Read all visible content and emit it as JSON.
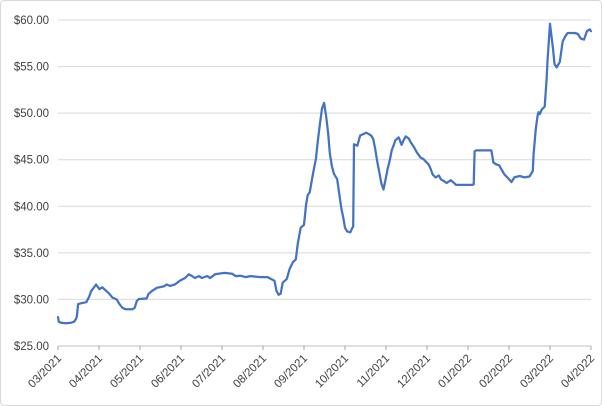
{
  "chart_data": {
    "type": "line",
    "title": "",
    "xlabel": "",
    "ylabel": "",
    "legend": "none",
    "grid": "horizontal",
    "x_tick_labels": [
      "03/2021",
      "04/2021",
      "05/2021",
      "06/2021",
      "07/2021",
      "08/2021",
      "09/2021",
      "10/2021",
      "11/2021",
      "12/2021",
      "01/2022",
      "02/2022",
      "03/2022",
      "04/2022"
    ],
    "y_tick_labels": [
      "$25.00",
      "$30.00",
      "$35.00",
      "$40.00",
      "$45.00",
      "$50.00",
      "$55.00",
      "$60.00"
    ],
    "ylim": [
      25,
      60
    ],
    "y_step": 5,
    "xlim": [
      0,
      13
    ],
    "colors": {
      "line": "#4472C4",
      "gridline": "#D9D9D9",
      "axis_line": "#BFBFBF",
      "tick_mark": "#A6A6A6",
      "axis_text": "#404040",
      "background": "#FFFFFF",
      "border": "#D9D9D9"
    },
    "series": [
      {
        "name": "price",
        "points": [
          [
            0,
            28.1
          ],
          [
            0.02,
            27.6
          ],
          [
            0.07,
            27.5
          ],
          [
            0.2,
            27.45
          ],
          [
            0.32,
            27.5
          ],
          [
            0.39,
            27.6
          ],
          [
            0.44,
            27.9
          ],
          [
            0.46,
            28.2
          ],
          [
            0.49,
            29.5
          ],
          [
            0.57,
            29.6
          ],
          [
            0.69,
            29.7
          ],
          [
            0.76,
            30.3
          ],
          [
            0.81,
            30.9
          ],
          [
            0.86,
            31.2
          ],
          [
            0.93,
            31.6
          ],
          [
            1.01,
            31.1
          ],
          [
            1.08,
            31.3
          ],
          [
            1.18,
            30.9
          ],
          [
            1.25,
            30.6
          ],
          [
            1.33,
            30.2
          ],
          [
            1.43,
            30.0
          ],
          [
            1.5,
            29.5
          ],
          [
            1.57,
            29.1
          ],
          [
            1.65,
            28.95
          ],
          [
            1.82,
            28.95
          ],
          [
            1.87,
            29.1
          ],
          [
            1.92,
            29.8
          ],
          [
            1.97,
            30.05
          ],
          [
            2.16,
            30.1
          ],
          [
            2.21,
            30.6
          ],
          [
            2.29,
            30.9
          ],
          [
            2.36,
            31.1
          ],
          [
            2.41,
            31.25
          ],
          [
            2.58,
            31.4
          ],
          [
            2.65,
            31.6
          ],
          [
            2.73,
            31.45
          ],
          [
            2.85,
            31.6
          ],
          [
            2.97,
            32.0
          ],
          [
            3.1,
            32.3
          ],
          [
            3.19,
            32.7
          ],
          [
            3.27,
            32.5
          ],
          [
            3.34,
            32.3
          ],
          [
            3.44,
            32.5
          ],
          [
            3.51,
            32.3
          ],
          [
            3.64,
            32.5
          ],
          [
            3.71,
            32.3
          ],
          [
            3.83,
            32.7
          ],
          [
            4.06,
            32.85
          ],
          [
            4.25,
            32.75
          ],
          [
            4.33,
            32.5
          ],
          [
            4.45,
            32.55
          ],
          [
            4.57,
            32.4
          ],
          [
            4.69,
            32.5
          ],
          [
            4.94,
            32.4
          ],
          [
            5.11,
            32.4
          ],
          [
            5.19,
            32.2
          ],
          [
            5.28,
            32.0
          ],
          [
            5.33,
            30.9
          ],
          [
            5.38,
            30.5
          ],
          [
            5.43,
            30.6
          ],
          [
            5.48,
            31.8
          ],
          [
            5.58,
            32.2
          ],
          [
            5.65,
            33.3
          ],
          [
            5.73,
            34.0
          ],
          [
            5.8,
            34.3
          ],
          [
            5.85,
            36.0
          ],
          [
            5.92,
            37.7
          ],
          [
            6.0,
            38.0
          ],
          [
            6.05,
            40.2
          ],
          [
            6.09,
            41.2
          ],
          [
            6.14,
            41.5
          ],
          [
            6.22,
            43.5
          ],
          [
            6.29,
            45.1
          ],
          [
            6.34,
            47.1
          ],
          [
            6.39,
            48.9
          ],
          [
            6.44,
            50.5
          ],
          [
            6.49,
            51.1
          ],
          [
            6.54,
            49.7
          ],
          [
            6.59,
            47.8
          ],
          [
            6.63,
            45.7
          ],
          [
            6.68,
            44.3
          ],
          [
            6.73,
            43.5
          ],
          [
            6.81,
            42.9
          ],
          [
            6.86,
            41.3
          ],
          [
            6.91,
            39.8
          ],
          [
            6.96,
            38.7
          ],
          [
            7.0,
            37.7
          ],
          [
            7.05,
            37.3
          ],
          [
            7.13,
            37.2
          ],
          [
            7.18,
            37.7
          ],
          [
            7.2,
            37.8
          ],
          [
            7.22,
            46.65
          ],
          [
            7.3,
            46.5
          ],
          [
            7.37,
            47.6
          ],
          [
            7.52,
            47.9
          ],
          [
            7.64,
            47.6
          ],
          [
            7.69,
            47.2
          ],
          [
            7.74,
            46.1
          ],
          [
            7.79,
            44.7
          ],
          [
            7.84,
            43.6
          ],
          [
            7.89,
            42.4
          ],
          [
            7.94,
            41.8
          ],
          [
            7.99,
            42.9
          ],
          [
            8.04,
            44.0
          ],
          [
            8.09,
            44.9
          ],
          [
            8.14,
            46.0
          ],
          [
            8.19,
            46.6
          ],
          [
            8.23,
            47.1
          ],
          [
            8.31,
            47.4
          ],
          [
            8.38,
            46.6
          ],
          [
            8.43,
            47.1
          ],
          [
            8.48,
            47.5
          ],
          [
            8.55,
            47.3
          ],
          [
            8.6,
            46.9
          ],
          [
            8.68,
            46.35
          ],
          [
            8.75,
            45.8
          ],
          [
            8.85,
            45.2
          ],
          [
            8.92,
            45.05
          ],
          [
            8.99,
            44.7
          ],
          [
            9.04,
            44.5
          ],
          [
            9.09,
            44.0
          ],
          [
            9.14,
            43.4
          ],
          [
            9.21,
            43.1
          ],
          [
            9.29,
            43.3
          ],
          [
            9.34,
            42.9
          ],
          [
            9.41,
            42.7
          ],
          [
            9.48,
            42.5
          ],
          [
            9.58,
            42.8
          ],
          [
            9.66,
            42.5
          ],
          [
            9.71,
            42.3
          ],
          [
            10.1,
            42.3
          ],
          [
            10.14,
            42.35
          ],
          [
            10.16,
            45.9
          ],
          [
            10.2,
            46.0
          ],
          [
            10.57,
            46.0
          ],
          [
            10.62,
            44.7
          ],
          [
            10.69,
            44.5
          ],
          [
            10.76,
            44.4
          ],
          [
            10.81,
            44.0
          ],
          [
            10.89,
            43.4
          ],
          [
            10.96,
            43.1
          ],
          [
            11.06,
            42.6
          ],
          [
            11.13,
            43.1
          ],
          [
            11.26,
            43.25
          ],
          [
            11.38,
            43.1
          ],
          [
            11.5,
            43.2
          ],
          [
            11.58,
            43.8
          ],
          [
            11.6,
            45.6
          ],
          [
            11.65,
            48.1
          ],
          [
            11.68,
            49.2
          ],
          [
            11.7,
            49.8
          ],
          [
            11.72,
            50.1
          ],
          [
            11.75,
            49.9
          ],
          [
            11.8,
            50.4
          ],
          [
            11.87,
            50.7
          ],
          [
            11.92,
            53.8
          ],
          [
            11.94,
            55.6
          ],
          [
            11.97,
            57.7
          ],
          [
            12.0,
            59.6
          ],
          [
            12.07,
            57.0
          ],
          [
            12.11,
            55.3
          ],
          [
            12.16,
            54.9
          ],
          [
            12.24,
            55.5
          ],
          [
            12.31,
            57.7
          ],
          [
            12.38,
            58.3
          ],
          [
            12.43,
            58.6
          ],
          [
            12.61,
            58.6
          ],
          [
            12.68,
            58.5
          ],
          [
            12.75,
            58.0
          ],
          [
            12.83,
            57.9
          ],
          [
            12.9,
            58.8
          ],
          [
            12.97,
            59.0
          ],
          [
            13.0,
            58.8
          ]
        ]
      }
    ]
  }
}
